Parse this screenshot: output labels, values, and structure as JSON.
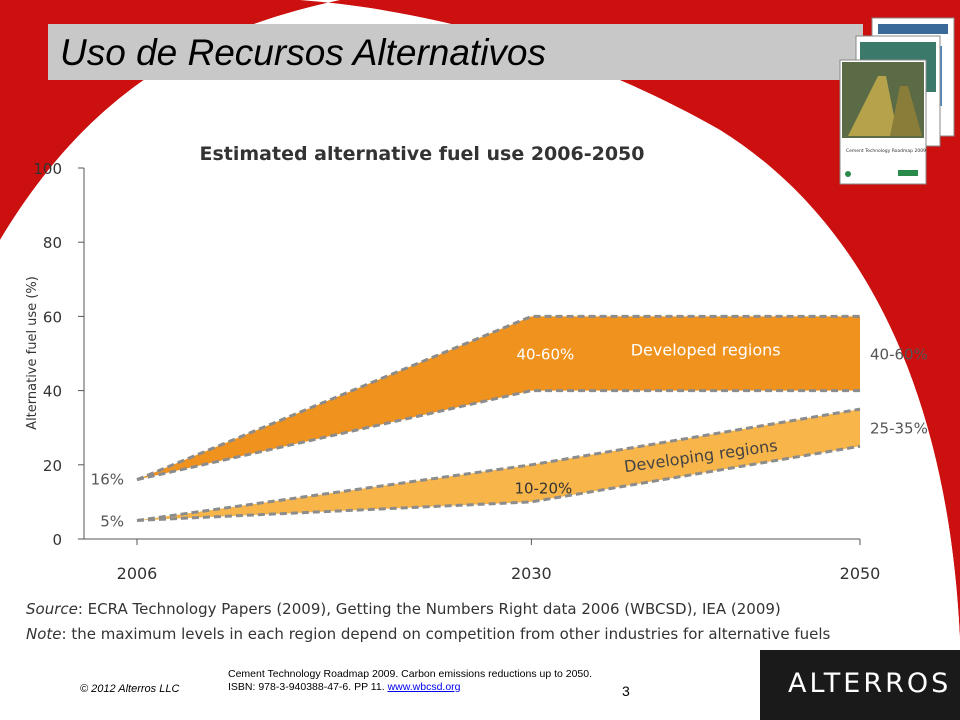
{
  "slide": {
    "title": "Uso de Recursos Alternativos",
    "footer_copyright": "© 2012 Alterros LLC",
    "footer_reference": "Cement Technology Roadmap 2009. Carbon emissions reductions up to 2050. ISBN: 978-3-940388-47-6. PP 11.",
    "footer_link": "www.wbcsd.org",
    "page_number": "3",
    "logo_text": "ALTERROS",
    "book_cover_title": "Cement Technology Roadmap 2009",
    "colors": {
      "background_red": "#cc1010",
      "title_bar": "#c8c8c8",
      "logo_bar": "#1a1a1a"
    }
  },
  "chart_data": {
    "type": "area",
    "title": "Estimated alternative fuel use 2006-2050",
    "ylabel": "Alternative fuel use (%)",
    "xlabel": "",
    "x": [
      2006,
      2030,
      2050
    ],
    "x_tick_labels": [
      "2006",
      "2030",
      "2050"
    ],
    "y_ticks": [
      0,
      20,
      40,
      60,
      80,
      100
    ],
    "ylim": [
      0,
      100
    ],
    "grid": false,
    "series": [
      {
        "name": "Developed regions",
        "lower": [
          16,
          40,
          40
        ],
        "upper": [
          16,
          60,
          60
        ],
        "color": "#f0921e",
        "range_label_mid": "40-60%",
        "range_label_end": "40-60%"
      },
      {
        "name": "Developing regions",
        "lower": [
          5,
          10,
          25
        ],
        "upper": [
          5,
          20,
          35
        ],
        "color": "#f7b54a",
        "range_label_mid": "10-20%",
        "range_label_end": "25-35%"
      }
    ],
    "start_labels": [
      "16%",
      "5%"
    ],
    "source_prefix": "Source",
    "source_text": ": ECRA Technology Papers (2009), Getting the Numbers Right data 2006 (WBCSD), IEA (2009)",
    "note_prefix": "Note",
    "note_text": ": the maximum levels in each region depend on competition from other industries for alternative fuels"
  }
}
